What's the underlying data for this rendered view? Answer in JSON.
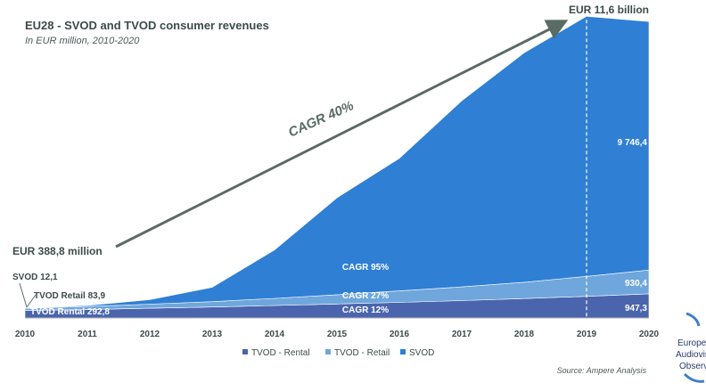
{
  "chart_data": {
    "type": "area",
    "stacked": true,
    "title": "EU28 - SVOD and TVOD consumer revenues",
    "subtitle": "In EUR million, 2010-2020",
    "x": [
      "2010",
      "2011",
      "2012",
      "2013",
      "2014",
      "2015",
      "2016",
      "2017",
      "2018",
      "2019",
      "2020"
    ],
    "ylim": [
      0,
      11700
    ],
    "series": [
      {
        "name": "TVOD - Rental",
        "color": "#4a65ad",
        "values": [
          292.8,
          330,
          380,
          430,
          490,
          550,
          610,
          680,
          760,
          850,
          947.3
        ]
      },
      {
        "name": "TVOD - Retail",
        "color": "#6fa6dc",
        "values": [
          83.9,
          120,
          160,
          210,
          280,
          360,
          450,
          540,
          640,
          780,
          930.4
        ]
      },
      {
        "name": "SVOD",
        "color": "#2f7fd4",
        "values": [
          12.1,
          40,
          180,
          560,
          1900,
          3800,
          5200,
          7300,
          9000,
          10200,
          9746.4
        ]
      }
    ],
    "annotations": {
      "start_total": "EUR 388,8 million",
      "end_total": "EUR 11,6 billion",
      "cagr_total": "CAGR 40%",
      "cagr_svod": "CAGR 95%",
      "cagr_retail": "CAGR 27%",
      "cagr_rental": "CAGR 12%",
      "start_svod": "SVOD 12,1",
      "start_retail": "TVOD Retail 83,9",
      "start_rental": "TVOD Rental 292,8",
      "end_svod": "9 746,4",
      "end_retail": "930,4",
      "end_rental": "947,3"
    },
    "legend": [
      "TVOD - Rental",
      "TVOD - Retail",
      "SVOD"
    ],
    "legend_position": "bottom"
  },
  "source": "Source: Ampere Analysis",
  "logo": {
    "line1": "European",
    "line2": "Audiovisu",
    "line3": "Observ"
  }
}
